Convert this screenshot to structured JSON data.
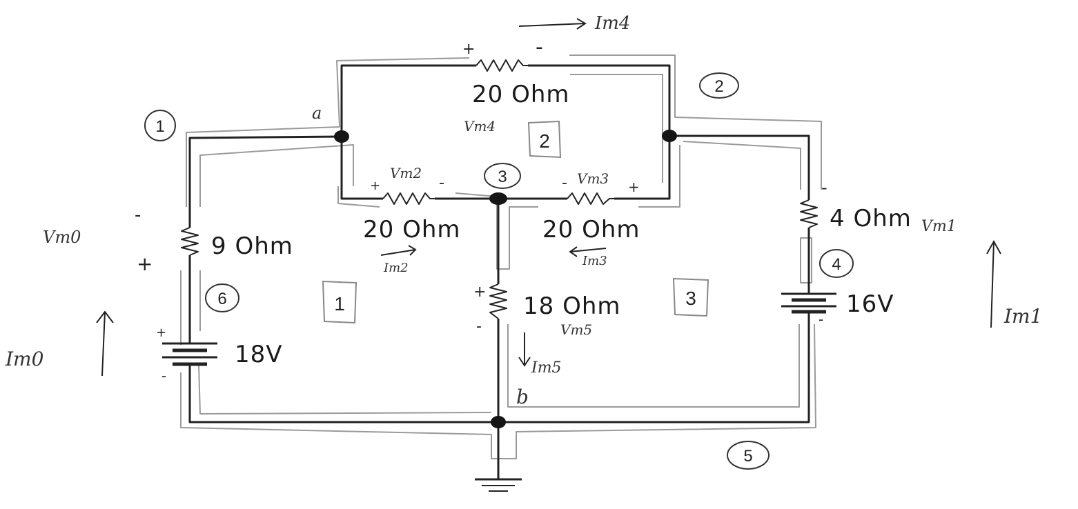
{
  "resistors": {
    "r_top": "20 Ohm",
    "r_mid_left": "20 Ohm",
    "r_mid_right": "20 Ohm",
    "r_left": "9 Ohm",
    "r_center": "18 Ohm",
    "r_right": "4 Ohm"
  },
  "sources": {
    "v_left": "18V",
    "v_right": "16V"
  },
  "voltage_labels": {
    "vm0": "Vm0",
    "vm1": "Vm1",
    "vm2": "Vm2",
    "vm3": "Vm3",
    "vm4": "Vm4",
    "vm5": "Vm5"
  },
  "current_labels": {
    "im0": "Im0",
    "im1": "Im1",
    "im2": "Im2",
    "im3": "Im3",
    "im4": "Im4",
    "im5": "Im5"
  },
  "node_labels": {
    "a": "a",
    "b": "b"
  },
  "circled_numbers": {
    "n1": "1",
    "n2": "2",
    "n3": "3",
    "n4": "4",
    "n5": "5",
    "n6": "6"
  },
  "loop_numbers": {
    "loop1": "1",
    "loop2": "2",
    "loop3": "3"
  },
  "polarity": {
    "plus": "+",
    "minus": "-"
  }
}
